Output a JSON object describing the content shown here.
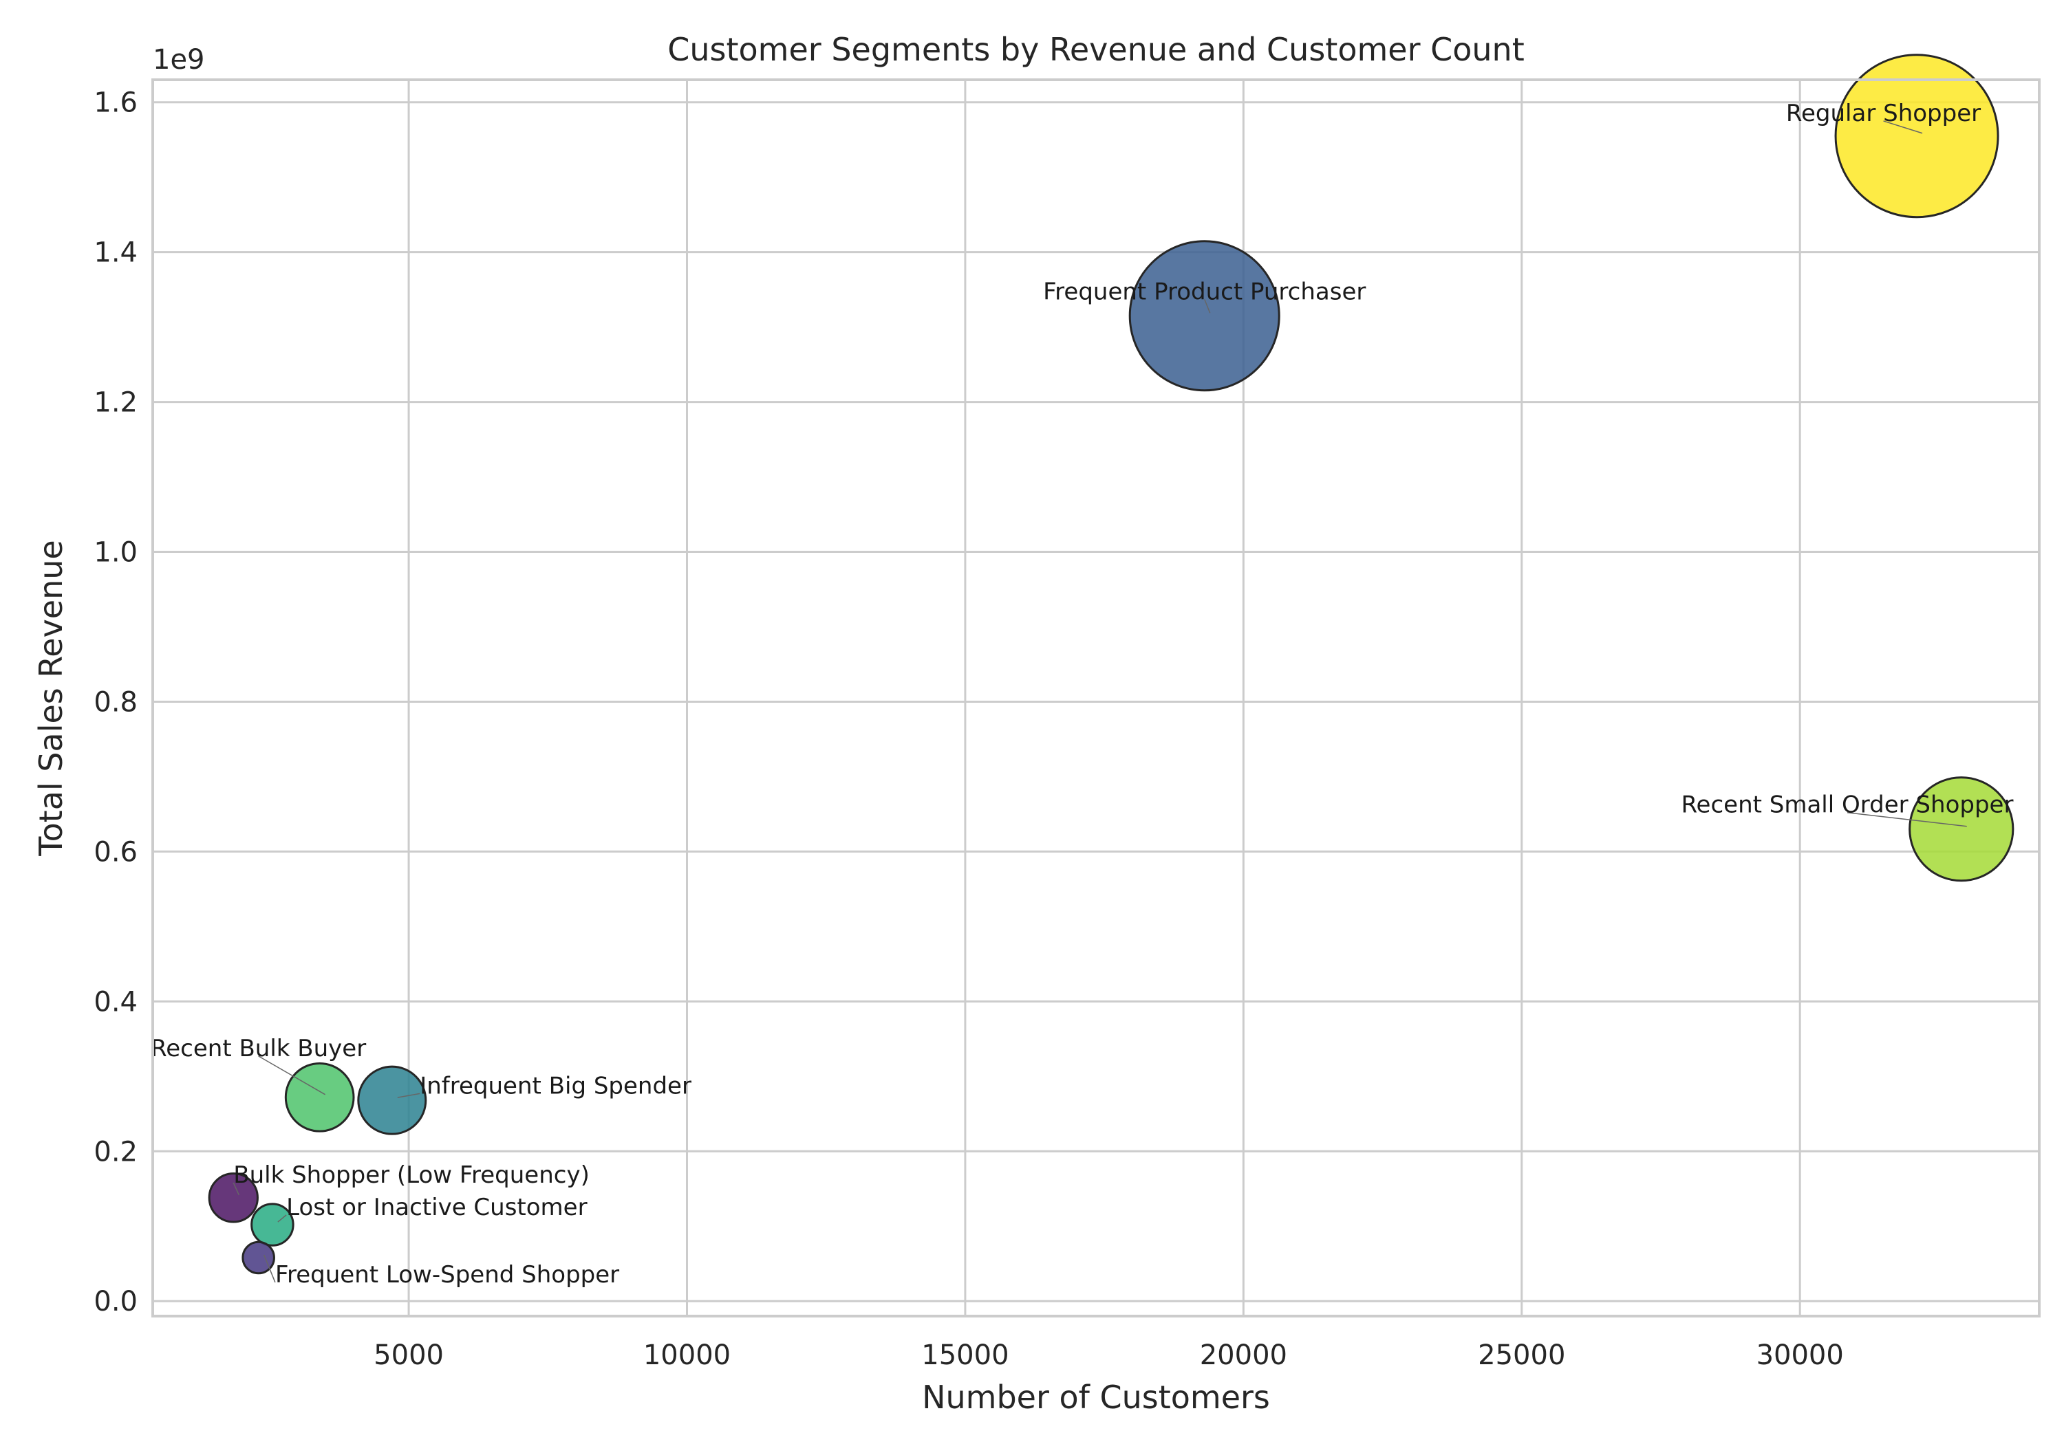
{
  "chart_data": {
    "type": "scatter",
    "title": "Customer Segments by Revenue and Customer Count",
    "xlabel": "Number of Customers",
    "ylabel": "Total Sales Revenue",
    "y_offset_label": "1e9",
    "xlim": [
      400,
      34300
    ],
    "ylim": [
      -0.02,
      1.63
    ],
    "y_multiplier": 1000000000,
    "x_ticks": [
      5000,
      10000,
      15000,
      20000,
      25000,
      30000
    ],
    "x_tick_labels": [
      "5000",
      "10000",
      "15000",
      "20000",
      "25000",
      "30000"
    ],
    "y_ticks": [
      0.0,
      0.2,
      0.4,
      0.6,
      0.8,
      1.0,
      1.2,
      1.4,
      1.6
    ],
    "y_tick_labels": [
      "0.0",
      "0.2",
      "0.4",
      "0.6",
      "0.8",
      "1.0",
      "1.2",
      "1.4",
      "1.6"
    ],
    "grid": true,
    "legend": "none",
    "points": [
      {
        "name": "Regular Shopper",
        "x": 32100,
        "y": 1.555,
        "size": 1.555,
        "color": "#fde725",
        "label_x": 31500,
        "label_y": 1.575,
        "anchor": "middle"
      },
      {
        "name": "Frequent Product Purchaser",
        "x": 19300,
        "y": 1.315,
        "size": 1.315,
        "color": "#3b5f91",
        "label_x": 19300,
        "label_y": 1.337,
        "anchor": "middle"
      },
      {
        "name": "Recent Small Order Shopper",
        "x": 32900,
        "y": 0.63,
        "size": 0.63,
        "color": "#a5db36",
        "label_x": 30850,
        "label_y": 0.652,
        "anchor": "middle"
      },
      {
        "name": "Recent Bulk Buyer",
        "x": 3400,
        "y": 0.272,
        "size": 0.272,
        "color": "#4ec36b",
        "label_x": 2300,
        "label_y": 0.327,
        "anchor": "middle"
      },
      {
        "name": "Infrequent Big Spender",
        "x": 4700,
        "y": 0.268,
        "size": 0.268,
        "color": "#2c8190",
        "label_x": 5200,
        "label_y": 0.277,
        "anchor": "start"
      },
      {
        "name": "Bulk Shopper (Low Frequency)",
        "x": 1850,
        "y": 0.138,
        "size": 0.138,
        "color": "#4b1463",
        "label_x": 1850,
        "label_y": 0.158,
        "anchor": "start"
      },
      {
        "name": "Lost or Inactive Customer",
        "x": 2550,
        "y": 0.102,
        "size": 0.102,
        "color": "#27ab83",
        "label_x": 2800,
        "label_y": 0.115,
        "anchor": "start"
      },
      {
        "name": "Frequent Low-Spend Shopper",
        "x": 2300,
        "y": 0.058,
        "size": 0.058,
        "color": "#453781",
        "label_x": 2600,
        "label_y": 0.025,
        "anchor": "start"
      }
    ],
    "colors": {
      "edge": "#262626",
      "grid": "#cccccc",
      "text": "#262626"
    }
  }
}
